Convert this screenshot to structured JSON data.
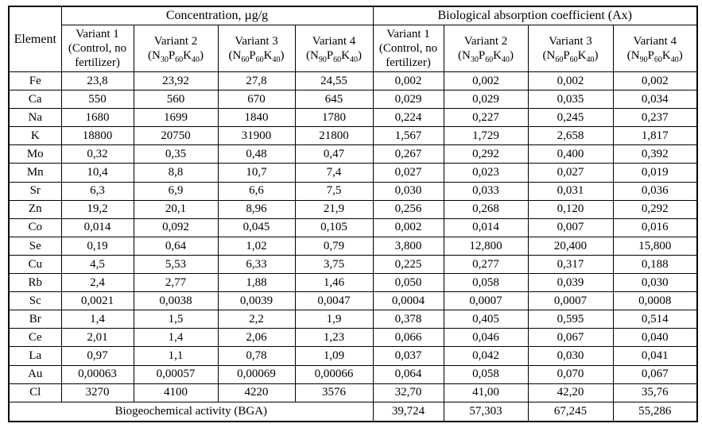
{
  "table": {
    "header": {
      "element_label": "Element",
      "concentration_group": "Concentration, µg/g",
      "absorption_group": "Biological absorption coefficient (Ax)"
    },
    "variants": [
      {
        "title": "Variant 1",
        "line2": "(Control, no",
        "line3": "fertilizer)"
      },
      {
        "title": "Variant 2",
        "formula": [
          "(N",
          "30",
          "P",
          "60",
          "K",
          "40",
          ")"
        ]
      },
      {
        "title": "Variant 3",
        "formula": [
          "(N",
          "60",
          "P",
          "60",
          "K",
          "40",
          ")"
        ]
      },
      {
        "title": "Variant 4",
        "formula": [
          "(N",
          "90",
          "P",
          "60",
          "K",
          "40",
          ")"
        ]
      }
    ],
    "rows": [
      {
        "element": "Fe",
        "concentration": [
          "23,8",
          "23,92",
          "27,8",
          "24,55"
        ],
        "absorption": [
          "0,002",
          "0,002",
          "0,002",
          "0,002"
        ]
      },
      {
        "element": "Ca",
        "concentration": [
          "550",
          "560",
          "670",
          "645"
        ],
        "absorption": [
          "0,029",
          "0,029",
          "0,035",
          "0,034"
        ]
      },
      {
        "element": "Na",
        "concentration": [
          "1680",
          "1699",
          "1840",
          "1780"
        ],
        "absorption": [
          "0,224",
          "0,227",
          "0,245",
          "0,237"
        ]
      },
      {
        "element": "K",
        "concentration": [
          "18800",
          "20750",
          "31900",
          "21800"
        ],
        "absorption": [
          "1,567",
          "1,729",
          "2,658",
          "1,817"
        ]
      },
      {
        "element": "Mo",
        "concentration": [
          "0,32",
          "0,35",
          "0,48",
          "0,47"
        ],
        "absorption": [
          "0,267",
          "0,292",
          "0,400",
          "0,392"
        ]
      },
      {
        "element": "Mn",
        "concentration": [
          "10,4",
          "8,8",
          "10,7",
          "7,4"
        ],
        "absorption": [
          "0,027",
          "0,023",
          "0,027",
          "0,019"
        ]
      },
      {
        "element": "Sr",
        "concentration": [
          "6,3",
          "6,9",
          "6,6",
          "7,5"
        ],
        "absorption": [
          "0,030",
          "0,033",
          "0,031",
          "0,036"
        ]
      },
      {
        "element": "Zn",
        "concentration": [
          "19,2",
          "20,1",
          "8,96",
          "21,9"
        ],
        "absorption": [
          "0,256",
          "0,268",
          "0,120",
          "0,292"
        ]
      },
      {
        "element": "Co",
        "concentration": [
          "0,014",
          "0,092",
          "0,045",
          "0,105"
        ],
        "absorption": [
          "0,002",
          "0,014",
          "0,007",
          "0,016"
        ]
      },
      {
        "element": "Se",
        "concentration": [
          "0,19",
          "0,64",
          "1,02",
          "0,79"
        ],
        "absorption": [
          "3,800",
          "12,800",
          "20,400",
          "15,800"
        ]
      },
      {
        "element": "Cu",
        "concentration": [
          "4,5",
          "5,53",
          "6,33",
          "3,75"
        ],
        "absorption": [
          "0,225",
          "0,277",
          "0,317",
          "0,188"
        ]
      },
      {
        "element": "Rb",
        "concentration": [
          "2,4",
          "2,77",
          "1,88",
          "1,46"
        ],
        "absorption": [
          "0,050",
          "0,058",
          "0,039",
          "0,030"
        ]
      },
      {
        "element": "Sc",
        "concentration": [
          "0,0021",
          "0,0038",
          "0,0039",
          "0,0047"
        ],
        "absorption": [
          "0,0004",
          "0,0007",
          "0,0007",
          "0,0008"
        ]
      },
      {
        "element": "Br",
        "concentration": [
          "1,4",
          "1,5",
          "2,2",
          "1,9"
        ],
        "absorption": [
          "0,378",
          "0,405",
          "0,595",
          "0,514"
        ]
      },
      {
        "element": "Ce",
        "concentration": [
          "2,01",
          "1,4",
          "2,06",
          "1,23"
        ],
        "absorption": [
          "0,066",
          "0,046",
          "0,067",
          "0,040"
        ]
      },
      {
        "element": "La",
        "concentration": [
          "0,97",
          "1,1",
          "0,78",
          "1,09"
        ],
        "absorption": [
          "0,037",
          "0,042",
          "0,030",
          "0,041"
        ]
      },
      {
        "element": "Au",
        "concentration": [
          "0,00063",
          "0,00057",
          "0,00069",
          "0,00066"
        ],
        "absorption": [
          "0,064",
          "0,058",
          "0,070",
          "0,067"
        ]
      },
      {
        "element": "Cl",
        "concentration": [
          "3270",
          "4100",
          "4220",
          "3576"
        ],
        "absorption": [
          "32,70",
          "41,00",
          "42,20",
          "35,76"
        ]
      }
    ],
    "footer": {
      "label": "Biogeochemical activity (BGA)",
      "values": [
        "39,724",
        "57,303",
        "67,245",
        "55,286"
      ]
    }
  }
}
